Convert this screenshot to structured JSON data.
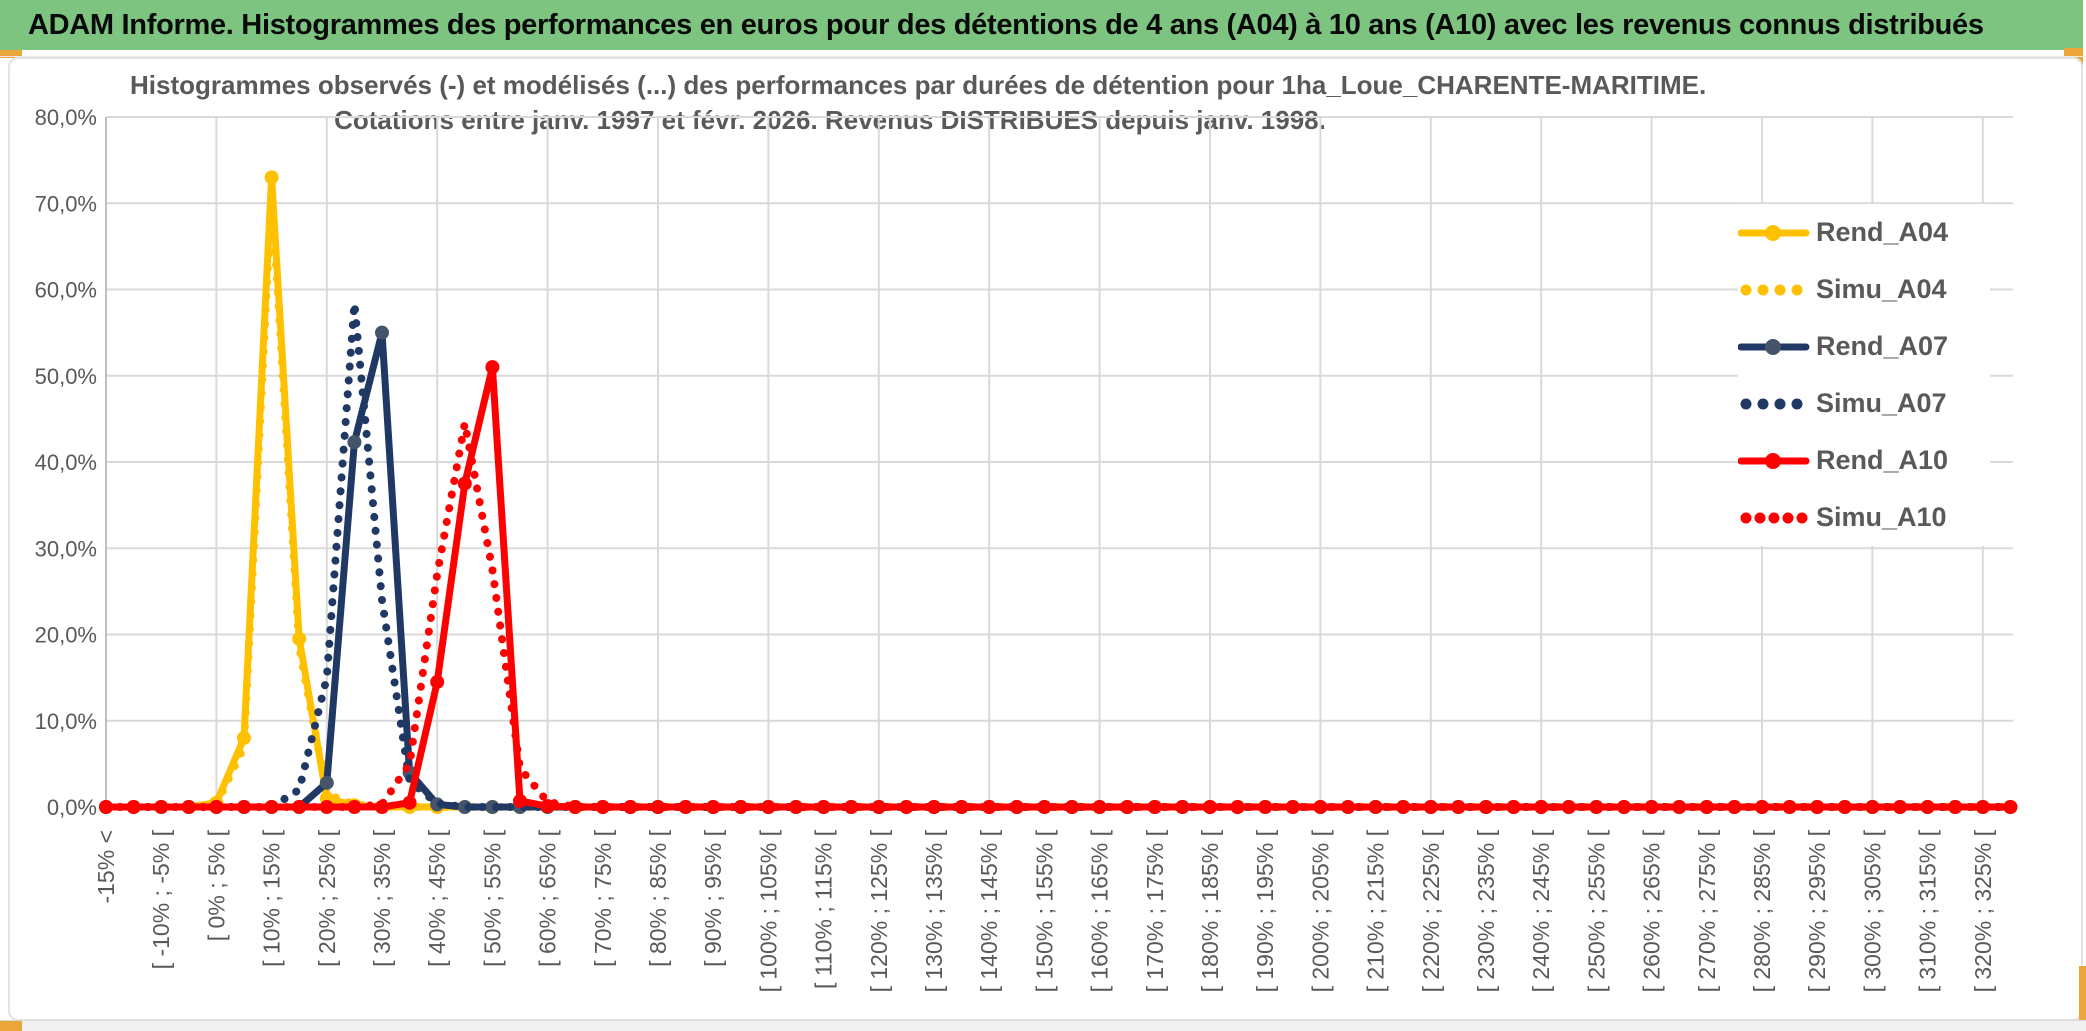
{
  "header": {
    "title": "ADAM Informe. Histogrammes des performances en euros pour des détentions de 4 ans (A04) à 10 ans (A10) avec les revenus connus distribués"
  },
  "chart_data": {
    "type": "line",
    "title_line1": "Histogrammes observés (-) et modélisés (...) des performances par durées de détention pour 1ha_Loue_CHARENTE-MARITIME.",
    "title_line2": "Cotations entre janv. 1997 et févr. 2026. Revenus DISTRIBUES depuis janv. 1998.",
    "legend_position": "right-overlay",
    "grid": true,
    "colors": {
      "grid": "#d9d9d9",
      "axis": "#bfbfbf",
      "text": "#595959",
      "header_green": "#7cc47f",
      "gold_accent": "#eaa63a"
    },
    "y_axis": {
      "min": 0,
      "max": 80,
      "step": 10,
      "labels": [
        "0,0%",
        "10,0%",
        "20,0%",
        "30,0%",
        "40,0%",
        "50,0%",
        "60,0%",
        "70,0%",
        "80,0%"
      ]
    },
    "x_labels": [
      "-15% <",
      "",
      "[ -10% ; -5% [",
      "",
      "[ 0% ; 5% [",
      "",
      "[ 10% ; 15% [",
      "",
      "[ 20% ; 25% [",
      "",
      "[ 30% ; 35% [",
      "",
      "[ 40% ; 45% [",
      "",
      "[ 50% ; 55% [",
      "",
      "[ 60% ; 65% [",
      "",
      "[ 70% ; 75% [",
      "",
      "[ 80% ; 85% [",
      "",
      "[ 90% ; 95% [",
      "",
      "[ 100% ; 105% [",
      "",
      "[ 110% ; 115% [",
      "",
      "[ 120% ; 125% [",
      "",
      "[ 130% ; 135% [",
      "",
      "[ 140% ; 145% [",
      "",
      "[ 150% ; 155% [",
      "",
      "[ 160% ; 165% [",
      "",
      "[ 170% ; 175% [",
      "",
      "[ 180% ; 185% [",
      "",
      "[ 190% ; 195% [",
      "",
      "[ 200% ; 205% [",
      "",
      "[ 210% ; 215% [",
      "",
      "[ 220% ; 225% [",
      "",
      "[ 230% ; 235% [",
      "",
      "[ 240% ; 245% [",
      "",
      "[ 250% ; 255% [",
      "",
      "[ 260% ; 265% [",
      "",
      "[ 270% ; 275% [",
      "",
      "[ 280% ; 285% [",
      "",
      "[ 290% ; 295% [",
      "",
      "[ 300% ; 305% [",
      "",
      "[ 310% ; 315% [",
      "",
      "[ 320% ; 325% [",
      ""
    ],
    "series": [
      {
        "name": "Rend_A04",
        "style": "solid",
        "color": "#ffc000",
        "marker_color": "#ffc000",
        "values": [
          0,
          0,
          0,
          0,
          0.5,
          8,
          73,
          19.5,
          1,
          0.2,
          0,
          0,
          0,
          0,
          0,
          0,
          0,
          0,
          0,
          0,
          0,
          0,
          0,
          0,
          0,
          0,
          0,
          0,
          0,
          0,
          0,
          0,
          0,
          0,
          0,
          0,
          0,
          0,
          0,
          0,
          0,
          0,
          0,
          0,
          0,
          0,
          0,
          0,
          0,
          0,
          0,
          0,
          0,
          0,
          0,
          0,
          0,
          0,
          0,
          0,
          0,
          0,
          0,
          0,
          0,
          0,
          0,
          0,
          0,
          0
        ]
      },
      {
        "name": "Simu_A04",
        "style": "dotted",
        "color": "#ffc000",
        "marker_color": "#ffc000",
        "values": [
          0,
          0,
          0,
          0,
          0.3,
          7,
          71.5,
          18.5,
          1.5,
          0.3,
          0,
          0,
          0,
          0,
          0,
          0,
          0,
          0,
          0,
          0,
          0,
          0,
          0,
          0,
          0,
          0,
          0,
          0,
          0,
          0,
          0,
          0,
          0,
          0,
          0,
          0,
          0,
          0,
          0,
          0,
          0,
          0,
          0,
          0,
          0,
          0,
          0,
          0,
          0,
          0,
          0,
          0,
          0,
          0,
          0,
          0,
          0,
          0,
          0,
          0,
          0,
          0,
          0,
          0,
          0,
          0,
          0,
          0,
          0,
          0
        ]
      },
      {
        "name": "Rend_A07",
        "style": "solid",
        "color": "#1f3864",
        "marker_color": "#44546a",
        "values": [
          0,
          0,
          0,
          0,
          0,
          0,
          0,
          0,
          2.8,
          42.3,
          55,
          4,
          0.3,
          0,
          0,
          0,
          0,
          0,
          0,
          0,
          0,
          0,
          0,
          0,
          0,
          0,
          0,
          0,
          0,
          0,
          0,
          0,
          0,
          0,
          0,
          0,
          0,
          0,
          0,
          0,
          0,
          0,
          0,
          0,
          0,
          0,
          0,
          0,
          0,
          0,
          0,
          0,
          0,
          0,
          0,
          0,
          0,
          0,
          0,
          0,
          0,
          0,
          0,
          0,
          0,
          0,
          0,
          0,
          0,
          0
        ]
      },
      {
        "name": "Simu_A07",
        "style": "dotted",
        "color": "#1f3864",
        "marker_color": "#1f3864",
        "values": [
          0,
          0,
          0,
          0,
          0,
          0,
          0,
          2,
          15,
          58.4,
          24,
          3,
          0.4,
          0,
          0,
          0,
          0,
          0,
          0,
          0,
          0,
          0,
          0,
          0,
          0,
          0,
          0,
          0,
          0,
          0,
          0,
          0,
          0,
          0,
          0,
          0,
          0,
          0,
          0,
          0,
          0,
          0,
          0,
          0,
          0,
          0,
          0,
          0,
          0,
          0,
          0,
          0,
          0,
          0,
          0,
          0,
          0,
          0,
          0,
          0,
          0,
          0,
          0,
          0,
          0,
          0,
          0,
          0,
          0,
          0
        ]
      },
      {
        "name": "Rend_A10",
        "style": "solid",
        "color": "#ff0000",
        "marker_color": "#ff0000",
        "values": [
          0,
          0,
          0,
          0,
          0,
          0,
          0,
          0,
          0,
          0,
          0,
          0.5,
          14.5,
          37.5,
          51,
          0.7,
          0.1,
          0,
          0,
          0,
          0,
          0,
          0,
          0,
          0,
          0,
          0,
          0,
          0,
          0,
          0,
          0,
          0,
          0,
          0,
          0,
          0,
          0,
          0,
          0,
          0,
          0,
          0,
          0,
          0,
          0,
          0,
          0,
          0,
          0,
          0,
          0,
          0,
          0,
          0,
          0,
          0,
          0,
          0,
          0,
          0,
          0,
          0,
          0,
          0,
          0,
          0,
          0,
          0,
          0
        ]
      },
      {
        "name": "Simu_A10",
        "style": "dotted",
        "color": "#ff0000",
        "marker_color": "#ff0000",
        "values": [
          0,
          0,
          0,
          0,
          0,
          0,
          0,
          0,
          0,
          0,
          0.3,
          5,
          27,
          44.5,
          27.5,
          4.5,
          0.6,
          0,
          0,
          0,
          0,
          0,
          0,
          0,
          0,
          0,
          0,
          0,
          0,
          0,
          0,
          0,
          0,
          0,
          0,
          0,
          0,
          0,
          0,
          0,
          0,
          0,
          0,
          0,
          0,
          0,
          0,
          0,
          0,
          0,
          0,
          0,
          0,
          0,
          0,
          0,
          0,
          0,
          0,
          0,
          0,
          0,
          0,
          0,
          0,
          0,
          0,
          0,
          0,
          0
        ]
      }
    ]
  }
}
